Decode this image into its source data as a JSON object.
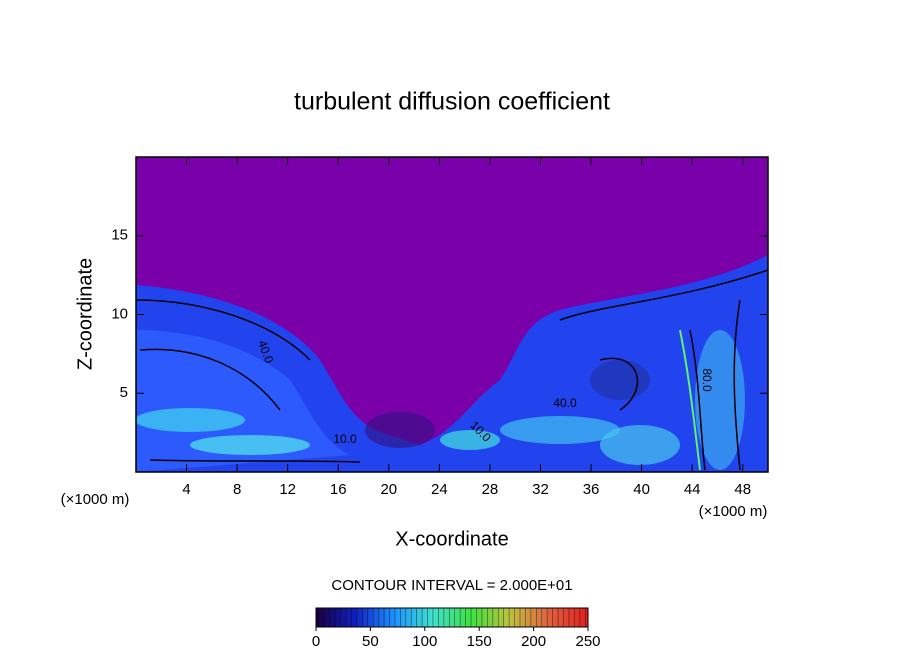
{
  "chart_data": {
    "type": "contour",
    "title": "turbulent diffusion coefficient",
    "x_label": "X-coordinate",
    "y_label": "Z-coordinate",
    "x_unit": "(×1000 m)",
    "xlim": [
      0,
      50
    ],
    "xticks": [
      4,
      8,
      12,
      16,
      20,
      24,
      28,
      32,
      36,
      40,
      44,
      48
    ],
    "ylim": [
      0,
      20
    ],
    "yticks": [
      5,
      10,
      15
    ],
    "annotations": [
      "40.0",
      "10.0",
      "40.0",
      "10.0",
      "80.0"
    ],
    "colorbar": {
      "label": "CONTOUR INTERVAL = 2.000E+01",
      "lim": [
        0,
        250
      ],
      "ticks": [
        0,
        50,
        100,
        150,
        200,
        250
      ],
      "colors": [
        "#1a0040",
        "#1020c0",
        "#1e90ff",
        "#40e0d0",
        "#40e040",
        "#c0c040",
        "#e06040",
        "#e02020"
      ]
    }
  }
}
